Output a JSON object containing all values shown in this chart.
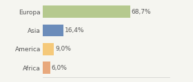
{
  "categories": [
    "Europa",
    "Asia",
    "America",
    "Africa"
  ],
  "values": [
    68.7,
    16.4,
    9.0,
    6.0
  ],
  "labels": [
    "68,7%",
    "16,4%",
    "9,0%",
    "6,0%"
  ],
  "bar_colors": [
    "#b5c98e",
    "#6b8cba",
    "#f5c97a",
    "#e8a87c"
  ],
  "background_color": "#f5f5f0",
  "xlim": [
    0,
    100
  ],
  "label_fontsize": 6.5,
  "category_fontsize": 6.5,
  "bar_height": 0.65
}
